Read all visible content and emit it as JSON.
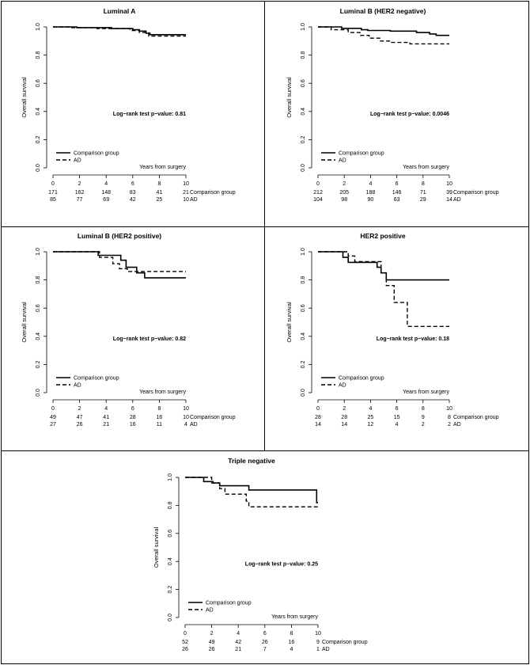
{
  "figure": {
    "frame_color": "#000000",
    "curve_color": "#000000",
    "background": "#ffffff"
  },
  "chart_data": [
    {
      "type": "line",
      "title": "Luminal A",
      "xlabel": "Years from surgery",
      "ylabel": "Overall survival",
      "xlim": [
        0,
        10
      ],
      "ylim": [
        0,
        1
      ],
      "x_ticks": [
        "0",
        "2",
        "4",
        "6",
        "8",
        "10"
      ],
      "y_ticks": [
        "0.0",
        "0.2",
        "0.4",
        "0.6",
        "0.8",
        "1.0"
      ],
      "annotation": "Log−rank test p−value: 0.81",
      "legend": [
        "Comparison group",
        "AD"
      ],
      "series": [
        {
          "name": "Comparison group",
          "style": "solid",
          "steps": [
            [
              0,
              1.0
            ],
            [
              1.8,
              0.995
            ],
            [
              4.4,
              0.988
            ],
            [
              6.0,
              0.98
            ],
            [
              6.5,
              0.97
            ],
            [
              7.0,
              0.955
            ],
            [
              7.3,
              0.945
            ],
            [
              10,
              0.945
            ]
          ]
        },
        {
          "name": "AD",
          "style": "dashed",
          "steps": [
            [
              0,
              1.0
            ],
            [
              1.3,
              0.995
            ],
            [
              3.3,
              0.988
            ],
            [
              5.8,
              0.975
            ],
            [
              6.5,
              0.96
            ],
            [
              7.2,
              0.935
            ],
            [
              10,
              0.935
            ]
          ]
        }
      ],
      "at_risk": {
        "labels": [
          "Comparison group",
          "AD"
        ],
        "rows": [
          [
            "171",
            "162",
            "148",
            "83",
            "41",
            "21"
          ],
          [
            "85",
            "77",
            "69",
            "42",
            "25",
            "10"
          ]
        ]
      }
    },
    {
      "type": "line",
      "title": "Luminal B (HER2 negative)",
      "xlabel": "Years from surgery",
      "ylabel": "Overall survival",
      "xlim": [
        0,
        10
      ],
      "ylim": [
        0,
        1
      ],
      "x_ticks": [
        "0",
        "2",
        "4",
        "6",
        "8",
        "10"
      ],
      "y_ticks": [
        "0.0",
        "0.2",
        "0.4",
        "0.6",
        "0.8",
        "1.0"
      ],
      "annotation": "Log−rank test p−value: 0.0046",
      "legend": [
        "Comparison group",
        "AD"
      ],
      "series": [
        {
          "name": "Comparison group",
          "style": "solid",
          "steps": [
            [
              0,
              1.0
            ],
            [
              1.8,
              0.99
            ],
            [
              3.3,
              0.98
            ],
            [
              3.8,
              0.975
            ],
            [
              5.5,
              0.97
            ],
            [
              7.5,
              0.96
            ],
            [
              8.5,
              0.95
            ],
            [
              9.0,
              0.94
            ],
            [
              10,
              0.94
            ]
          ]
        },
        {
          "name": "AD",
          "style": "dashed",
          "steps": [
            [
              0,
              1.0
            ],
            [
              1.0,
              0.98
            ],
            [
              2.3,
              0.96
            ],
            [
              3.2,
              0.94
            ],
            [
              3.9,
              0.92
            ],
            [
              4.7,
              0.9
            ],
            [
              5.5,
              0.89
            ],
            [
              7.0,
              0.88
            ],
            [
              10,
              0.88
            ]
          ]
        }
      ],
      "at_risk": {
        "labels": [
          "Comparison group",
          "AD"
        ],
        "rows": [
          [
            "212",
            "205",
            "188",
            "146",
            "71",
            "39"
          ],
          [
            "104",
            "98",
            "90",
            "63",
            "29",
            "14"
          ]
        ]
      }
    },
    {
      "type": "line",
      "title": "Luminal B (HER2 positive)",
      "xlabel": "Years from surgery",
      "ylabel": "Overall survival",
      "xlim": [
        0,
        10
      ],
      "ylim": [
        0,
        1
      ],
      "x_ticks": [
        "0",
        "2",
        "4",
        "6",
        "8",
        "10"
      ],
      "y_ticks": [
        "0.0",
        "0.2",
        "0.4",
        "0.6",
        "0.8",
        "1.0"
      ],
      "annotation": "Log−rank test p−value: 0.82",
      "legend": [
        "Comparison group",
        "AD"
      ],
      "series": [
        {
          "name": "Comparison group",
          "style": "solid",
          "steps": [
            [
              0,
              1.0
            ],
            [
              3.4,
              0.975
            ],
            [
              5.1,
              0.94
            ],
            [
              5.5,
              0.89
            ],
            [
              6.3,
              0.85
            ],
            [
              6.9,
              0.815
            ],
            [
              10,
              0.815
            ]
          ]
        },
        {
          "name": "AD",
          "style": "dashed",
          "steps": [
            [
              0,
              1.0
            ],
            [
              3.5,
              0.96
            ],
            [
              4.5,
              0.915
            ],
            [
              5.0,
              0.88
            ],
            [
              5.6,
              0.86
            ],
            [
              10,
              0.86
            ]
          ]
        }
      ],
      "at_risk": {
        "labels": [
          "Comparison group",
          "AD"
        ],
        "rows": [
          [
            "49",
            "47",
            "41",
            "28",
            "16",
            "10"
          ],
          [
            "27",
            "26",
            "21",
            "16",
            "11",
            "4"
          ]
        ]
      }
    },
    {
      "type": "line",
      "title": "HER2 positive",
      "xlabel": "Years from surgery",
      "ylabel": "Overall survival",
      "xlim": [
        0,
        10
      ],
      "ylim": [
        0,
        1
      ],
      "x_ticks": [
        "0",
        "2",
        "4",
        "6",
        "8",
        "10"
      ],
      "y_ticks": [
        "0.0",
        "0.2",
        "0.4",
        "0.6",
        "0.8",
        "1.0"
      ],
      "annotation": "Log−rank test p−value: 0.18",
      "legend": [
        "Comparison group",
        "AD"
      ],
      "series": [
        {
          "name": "Comparison group",
          "style": "solid",
          "steps": [
            [
              0,
              1.0
            ],
            [
              1.9,
              0.96
            ],
            [
              2.3,
              0.925
            ],
            [
              4.5,
              0.89
            ],
            [
              4.8,
              0.85
            ],
            [
              5.2,
              0.8
            ],
            [
              10,
              0.8
            ]
          ]
        },
        {
          "name": "AD",
          "style": "dashed",
          "steps": [
            [
              0,
              1.0
            ],
            [
              2.3,
              0.97
            ],
            [
              2.8,
              0.93
            ],
            [
              4.8,
              0.85
            ],
            [
              5.2,
              0.76
            ],
            [
              5.8,
              0.64
            ],
            [
              6.8,
              0.47
            ],
            [
              10,
              0.47
            ]
          ]
        }
      ],
      "at_risk": {
        "labels": [
          "Comparison group",
          "AD"
        ],
        "rows": [
          [
            "28",
            "28",
            "25",
            "15",
            "9",
            "8"
          ],
          [
            "14",
            "14",
            "12",
            "4",
            "2",
            "2"
          ]
        ]
      }
    },
    {
      "type": "line",
      "title": "Triple negative",
      "xlabel": "Years from surgery",
      "ylabel": "Overall survival",
      "xlim": [
        0,
        10
      ],
      "ylim": [
        0,
        1
      ],
      "x_ticks": [
        "0",
        "2",
        "4",
        "6",
        "8",
        "10"
      ],
      "y_ticks": [
        "0.0",
        "0.2",
        "0.4",
        "0.6",
        "0.8",
        "1.0"
      ],
      "annotation": "Log−rank test p−value: 0.25",
      "legend": [
        "Comparison group",
        "AD"
      ],
      "series": [
        {
          "name": "Comparison group",
          "style": "solid",
          "steps": [
            [
              0,
              1.0
            ],
            [
              1.4,
              0.97
            ],
            [
              2.1,
              0.96
            ],
            [
              2.6,
              0.94
            ],
            [
              4.8,
              0.91
            ],
            [
              9.9,
              0.82
            ],
            [
              10,
              0.82
            ]
          ]
        },
        {
          "name": "AD",
          "style": "dashed",
          "steps": [
            [
              0,
              1.0
            ],
            [
              2.0,
              0.96
            ],
            [
              2.6,
              0.92
            ],
            [
              3.0,
              0.88
            ],
            [
              4.6,
              0.83
            ],
            [
              4.8,
              0.79
            ],
            [
              10,
              0.79
            ]
          ]
        }
      ],
      "at_risk": {
        "labels": [
          "Comparison group",
          "AD"
        ],
        "rows": [
          [
            "52",
            "49",
            "42",
            "26",
            "16",
            "9"
          ],
          [
            "26",
            "26",
            "21",
            "7",
            "4",
            "1"
          ]
        ]
      }
    }
  ]
}
